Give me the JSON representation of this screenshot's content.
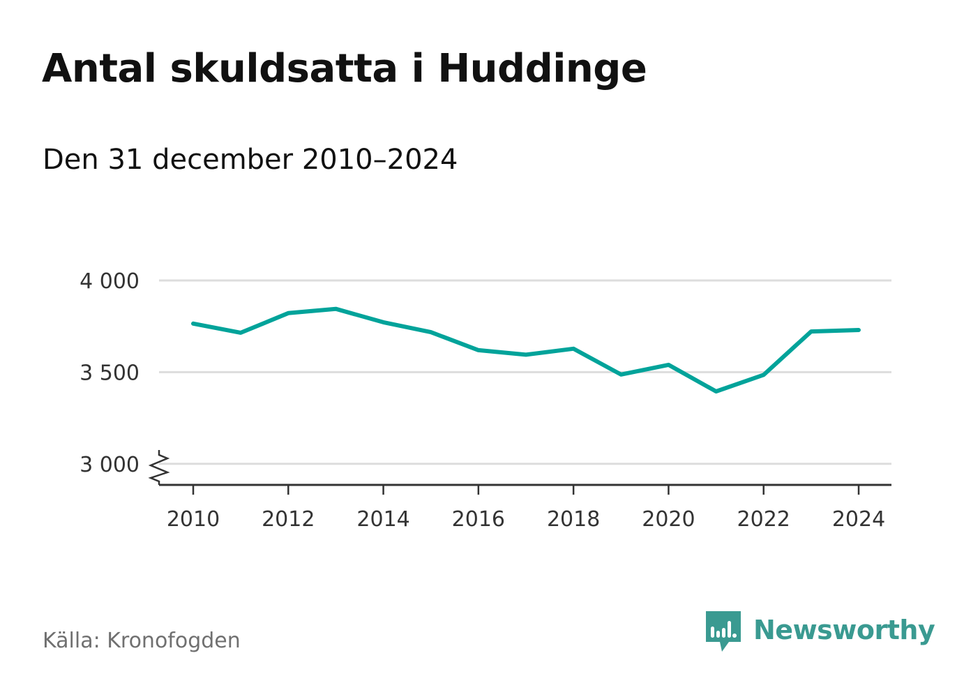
{
  "title": "Antal skuldsatta i Huddinge",
  "subtitle": "Den 31 december 2010–2024",
  "source": "Källa: Kronofogden",
  "brand": {
    "name": "Newsworthy",
    "icon": "newsworthy-logo-icon",
    "color": "#3a9a91"
  },
  "colors": {
    "line": "#00a39a",
    "grid": "#dddddd",
    "axis": "#333333"
  },
  "chart_data": {
    "type": "line",
    "x": [
      2010,
      2011,
      2012,
      2013,
      2014,
      2015,
      2016,
      2017,
      2018,
      2019,
      2020,
      2021,
      2022,
      2023,
      2024
    ],
    "series": [
      {
        "values": [
          3765,
          3715,
          3822,
          3845,
          3772,
          3718,
          3620,
          3595,
          3628,
          3487,
          3540,
          3395,
          3485,
          3722,
          3730
        ]
      }
    ],
    "xticks": [
      "2010",
      "2012",
      "2014",
      "2016",
      "2018",
      "2020",
      "2022",
      "2024"
    ],
    "xtick_values": [
      2010,
      2012,
      2014,
      2016,
      2018,
      2020,
      2022,
      2024
    ],
    "yticks": [
      "3 000",
      "3 500",
      "4 000"
    ],
    "ytick_values": [
      3000,
      3500,
      4000
    ],
    "ylim": [
      2885,
      4000
    ],
    "xlim": [
      2010,
      2024
    ],
    "axis_break": true,
    "grid": true
  }
}
